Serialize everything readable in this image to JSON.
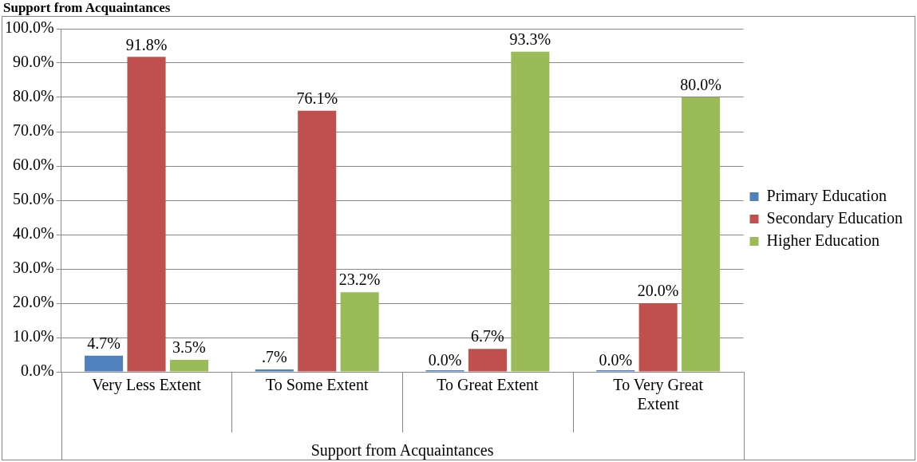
{
  "chart_data": {
    "type": "bar",
    "title": "Support from Acquaintances",
    "xlabel": "Support from Acquaintances",
    "categories": [
      "Very Less Extent",
      "To Some Extent",
      "To Great Extent",
      "To Very Great Extent"
    ],
    "series": [
      {
        "name": "Primary Education",
        "color": "#4f81bd",
        "values": [
          4.7,
          0.7,
          0,
          0
        ],
        "value_labels": [
          "4.7%",
          ".7%",
          "0.0%",
          "0.0%"
        ]
      },
      {
        "name": "Secondary Education",
        "color": "#c0504d",
        "values": [
          91.8,
          76.1,
          6.7,
          20.0
        ],
        "value_labels": [
          "91.8%",
          "76.1%",
          "6.7%",
          "20.0%"
        ]
      },
      {
        "name": "Higher Education",
        "color": "#9bbb59",
        "values": [
          3.5,
          23.2,
          93.3,
          80.0
        ],
        "value_labels": [
          "3.5%",
          "23.2%",
          "93.3%",
          "80.0%"
        ]
      }
    ],
    "ylim": [
      0,
      100
    ],
    "yticks": [
      {
        "value": 0,
        "label": "0.0%"
      },
      {
        "value": 10,
        "label": "10.0%"
      },
      {
        "value": 20,
        "label": "20.0%"
      },
      {
        "value": 30,
        "label": "30.0%"
      },
      {
        "value": 40,
        "label": "40.0%"
      },
      {
        "value": 50,
        "label": "50.0%"
      },
      {
        "value": 60,
        "label": "60.0%"
      },
      {
        "value": 70,
        "label": "70.0%"
      },
      {
        "value": 80,
        "label": "80.0%"
      },
      {
        "value": 90,
        "label": "90.0%"
      },
      {
        "value": 100,
        "label": "100.0%"
      }
    ],
    "grid": "y",
    "legend": "right"
  }
}
